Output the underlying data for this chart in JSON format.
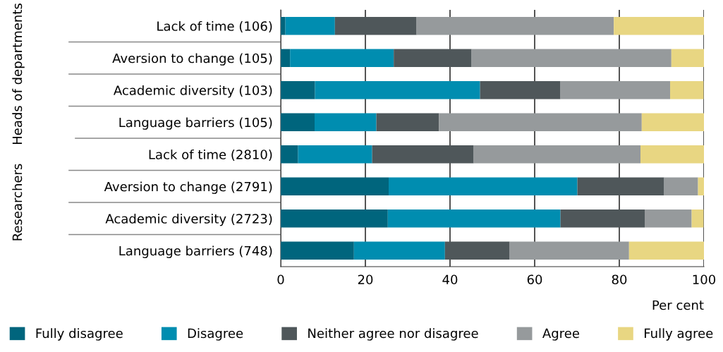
{
  "chart_data": {
    "type": "bar",
    "orientation": "horizontal",
    "stacked": true,
    "categories": [
      "Lack of time (106)",
      "Aversion to change (105)",
      "Academic diversity (103)",
      "Language barriers (105)",
      "Lack of time (2810)",
      "Aversion to change (2791)",
      "Academic diversity (2723)",
      "Language barriers (748)"
    ],
    "series": [
      {
        "name": "Fully disagree",
        "color": "#00657d",
        "values": [
          1.1,
          2.2,
          8.1,
          8.0,
          4.1,
          25.5,
          25.3,
          17.3
        ]
      },
      {
        "name": "Disagree",
        "color": "#008db0",
        "values": [
          11.7,
          24.5,
          39.0,
          14.6,
          17.5,
          44.6,
          40.8,
          21.5
        ]
      },
      {
        "name": "Neither agree nor disagree",
        "color": "#4f575a",
        "values": [
          19.3,
          18.4,
          19.0,
          14.8,
          24.0,
          20.5,
          19.9,
          15.3
        ]
      },
      {
        "name": "Agree",
        "color": "#969a9c",
        "values": [
          46.6,
          47.2,
          25.9,
          47.9,
          39.4,
          8.0,
          11.1,
          28.2
        ]
      },
      {
        "name": "Fully agree",
        "color": "#e8d682",
        "values": [
          21.3,
          7.7,
          7.9,
          14.7,
          15.0,
          1.4,
          2.8,
          17.7
        ]
      }
    ],
    "xlim": [
      0,
      100
    ],
    "xticks": [
      0,
      20,
      40,
      60,
      80,
      100
    ],
    "xlabel": "Per cent",
    "annotations": [
      "Heads of departments",
      "Researchers"
    ],
    "legend": "bottom",
    "grid": "x"
  }
}
